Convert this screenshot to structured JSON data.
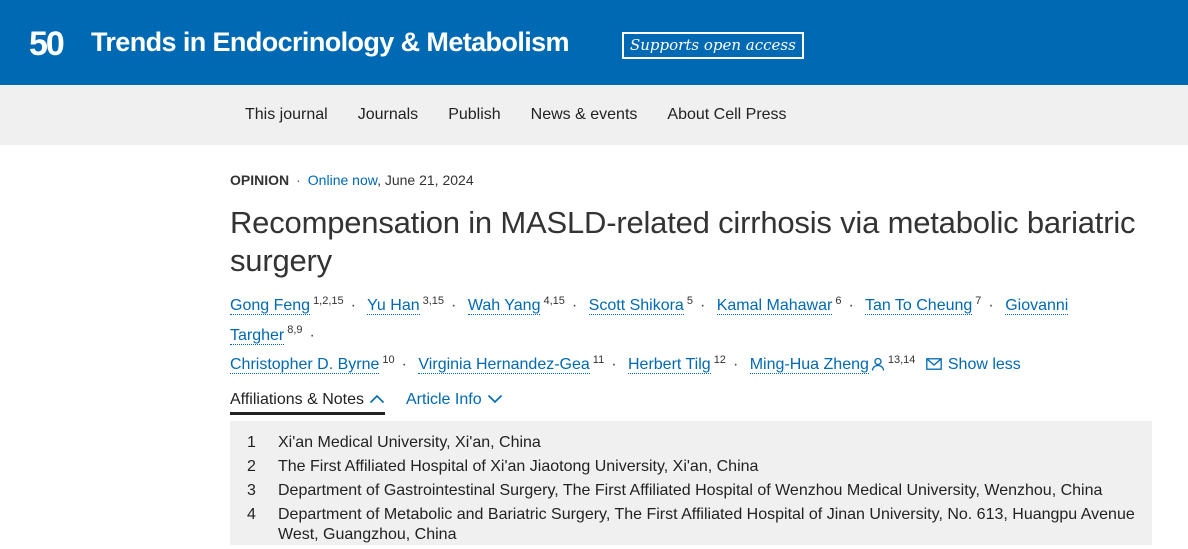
{
  "header": {
    "logo_text": "50",
    "journal_title": "Trends in Endocrinology & Metabolism",
    "open_access_badge": "Supports open access",
    "brand_color": "#0069b4"
  },
  "nav": {
    "items": [
      "This journal",
      "Journals",
      "Publish",
      "News & events",
      "About Cell Press"
    ]
  },
  "article": {
    "type": "OPINION",
    "online_label": "Online now",
    "date": ", June 21, 2024",
    "title": "Recompensation in MASLD-related cirrhosis via metabolic bariatric surgery",
    "authors": [
      {
        "name": "Gong Feng",
        "sup": "1,2,15"
      },
      {
        "name": "Yu Han",
        "sup": "3,15"
      },
      {
        "name": "Wah Yang",
        "sup": "4,15"
      },
      {
        "name": "Scott Shikora",
        "sup": "5"
      },
      {
        "name": "Kamal Mahawar",
        "sup": "6"
      },
      {
        "name": "Tan To Cheung",
        "sup": "7"
      },
      {
        "name": "Giovanni Targher",
        "sup": "8,9"
      },
      {
        "name": "Christopher D. Byrne",
        "sup": "10"
      },
      {
        "name": "Virginia Hernandez-Gea",
        "sup": "11"
      },
      {
        "name": "Herbert Tilg",
        "sup": "12"
      },
      {
        "name": "Ming-Hua Zheng",
        "sup": "13,14"
      }
    ],
    "show_less": "Show less"
  },
  "tabs": {
    "affiliations": "Affiliations & Notes",
    "article_info": "Article Info"
  },
  "affiliations": [
    {
      "num": "1",
      "text": "Xi'an Medical University, Xi'an, China"
    },
    {
      "num": "2",
      "text": "The First Affiliated Hospital of Xi'an Jiaotong University, Xi'an, China"
    },
    {
      "num": "3",
      "text": "Department of Gastrointestinal Surgery, The First Affiliated Hospital of Wenzhou Medical University, Wenzhou, China"
    },
    {
      "num": "4",
      "text": "Department of Metabolic and Bariatric Surgery, The First Affiliated Hospital of Jinan University, No. 613, Huangpu Avenue West, Guangzhou, China"
    }
  ]
}
